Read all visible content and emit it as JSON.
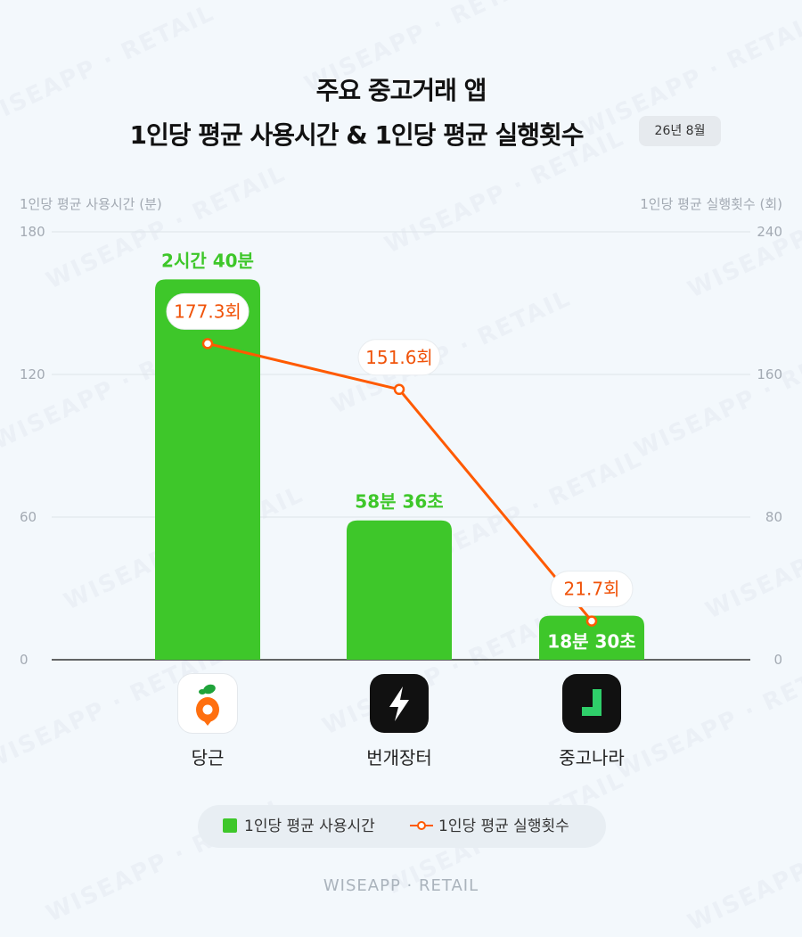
{
  "title_line1": "주요 중고거래 앱",
  "title_line2": "1인당 평균 사용시간 & 1인당 평균 실행횟수",
  "date_badge": "26년 8월",
  "footer": "WISEAPP · RETAIL",
  "watermark": "WISEAPP · RETAIL",
  "colors": {
    "bar": "#3ec72a",
    "line": "#ff5a00",
    "bar_label": "#3ec72a",
    "line_label": "#f0530a"
  },
  "chart_data": {
    "type": "bar",
    "categories": [
      "당근",
      "번개장터",
      "중고나라"
    ],
    "series": [
      {
        "name": "1인당 평균 사용시간",
        "type": "bar",
        "axis": "left",
        "values": [
          160,
          58.6,
          18.5
        ],
        "data_labels": [
          "2시간 40분",
          "58분 36초",
          "18분 30초"
        ]
      },
      {
        "name": "1인당 평균 실행횟수",
        "type": "line",
        "axis": "right",
        "values": [
          177.3,
          151.6,
          21.7
        ],
        "data_labels": [
          "177.3회",
          "151.6회",
          "21.7회"
        ]
      }
    ],
    "ylabel": "1인당 평균 사용시간 (분)",
    "ylabel_right": "1인당 평균 실행횟수 (회)",
    "ylim": [
      0,
      180
    ],
    "ylim_right": [
      0,
      240
    ],
    "yticks": [
      0,
      60,
      120,
      180
    ],
    "yticks_right": [
      0,
      80,
      160,
      240
    ],
    "grid": true,
    "legend": "bottom"
  },
  "icons": [
    "daangn-carrot-icon",
    "bunjang-lightning-icon",
    "joongna-logo-icon"
  ]
}
